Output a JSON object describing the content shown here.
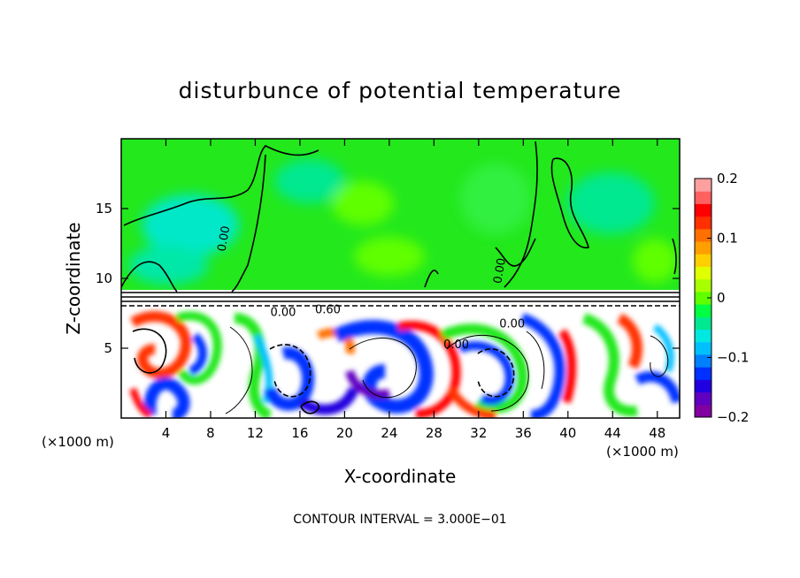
{
  "chart_data": {
    "type": "heatmap",
    "title": "disturbunce of potential temperature",
    "xlabel": "X-coordinate",
    "ylabel": "Z-coordinate",
    "x_unit_left": "(×1000 m)",
    "x_unit_right": "(×1000 m)",
    "xlim": [
      0,
      50
    ],
    "ylim": [
      0,
      20
    ],
    "xticks": [
      4,
      8,
      12,
      16,
      20,
      24,
      28,
      32,
      36,
      40,
      44,
      48
    ],
    "yticks": [
      5,
      10,
      15
    ],
    "colorbar": {
      "min": -0.2,
      "max": 0.2,
      "ticks": [
        {
          "value": 0.2,
          "label": "0.2"
        },
        {
          "value": 0.1,
          "label": "0.1"
        },
        {
          "value": 0,
          "label": "0"
        },
        {
          "value": -0.1,
          "label": "−0.1"
        },
        {
          "value": -0.2,
          "label": "−0.2"
        }
      ],
      "colors": [
        "#8000a0",
        "#6000c0",
        "#2000e0",
        "#0030ff",
        "#0080ff",
        "#00c0ff",
        "#00e8e0",
        "#00e890",
        "#00ff40",
        "#60ff00",
        "#a8ff00",
        "#e0ff00",
        "#ffd000",
        "#ffa000",
        "#ff7000",
        "#ff3000",
        "#ff0000",
        "#ff6060",
        "#ffa0a0"
      ]
    },
    "layers": [
      {
        "name": "upper",
        "z_range": [
          9,
          20
        ],
        "anomaly": "near 0 (-0.05 to 0.03)"
      },
      {
        "name": "lower",
        "z_range": [
          0,
          8
        ],
        "anomaly": "eddies from -0.2 to 0.2"
      }
    ],
    "contour_labels": [
      {
        "text": "0.00",
        "x": 9.5,
        "z": 12.8
      },
      {
        "text": "0.00",
        "x": 14.5,
        "z": 7.3
      },
      {
        "text": "0.60",
        "x": 18.5,
        "z": 7.5
      },
      {
        "text": "0.00",
        "x": 30,
        "z": 5
      },
      {
        "text": "0.00",
        "x": 35,
        "z": 6.5
      },
      {
        "text": "0.00",
        "x": 34.2,
        "z": 10.5
      }
    ],
    "contour_interval": "CONTOUR INTERVAL = 3.000E−01"
  }
}
